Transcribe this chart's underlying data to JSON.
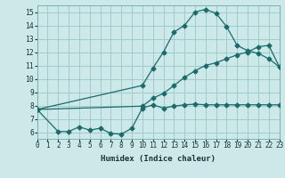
{
  "title": "",
  "xlabel": "Humidex (Indice chaleur)",
  "bg_color": "#cce8e8",
  "line_color": "#1a6b6b",
  "grid_color": "#a0cccc",
  "xlim": [
    0,
    23
  ],
  "ylim": [
    5.5,
    15.5
  ],
  "xticks": [
    0,
    1,
    2,
    3,
    4,
    5,
    6,
    7,
    8,
    9,
    10,
    11,
    12,
    13,
    14,
    15,
    16,
    17,
    18,
    19,
    20,
    21,
    22,
    23
  ],
  "yticks": [
    6,
    7,
    8,
    9,
    10,
    11,
    12,
    13,
    14,
    15
  ],
  "line1_x": [
    0,
    2,
    3,
    4,
    5,
    6,
    7,
    8,
    9,
    10,
    11,
    12,
    13,
    14,
    15,
    16,
    17,
    18,
    19,
    20,
    21,
    22,
    23
  ],
  "line1_y": [
    7.7,
    6.05,
    6.05,
    6.4,
    6.15,
    6.3,
    5.9,
    5.85,
    6.3,
    7.8,
    8.05,
    7.8,
    7.95,
    8.05,
    8.1,
    8.05,
    8.05,
    8.05,
    8.05,
    8.05,
    8.05,
    8.05,
    8.05
  ],
  "line2_x": [
    0,
    10,
    11,
    12,
    13,
    14,
    15,
    16,
    17,
    18,
    19,
    20,
    21,
    22,
    23
  ],
  "line2_y": [
    7.7,
    9.5,
    10.8,
    12.0,
    13.5,
    14.0,
    15.0,
    15.2,
    14.9,
    13.9,
    12.5,
    12.1,
    11.9,
    11.5,
    10.9
  ],
  "line3_x": [
    0,
    10,
    11,
    12,
    13,
    14,
    15,
    16,
    17,
    18,
    19,
    20,
    21,
    22,
    23
  ],
  "line3_y": [
    7.7,
    7.95,
    8.55,
    8.9,
    9.5,
    10.1,
    10.6,
    11.0,
    11.2,
    11.5,
    11.8,
    12.0,
    12.4,
    12.5,
    10.9
  ],
  "tick_fontsize": 5.5,
  "xlabel_fontsize": 6.5
}
